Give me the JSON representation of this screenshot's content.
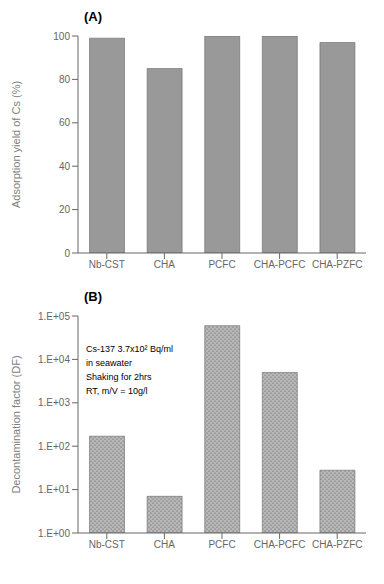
{
  "chart_data": [
    {
      "type": "bar",
      "title": "(A)",
      "categories": [
        "Nb-CST",
        "CHA",
        "PCFC",
        "CHA-PCFC",
        "CHA-PZFC"
      ],
      "values": [
        99.0,
        85.0,
        100.0,
        100.0,
        97.0
      ],
      "ylabel": "Adsorption yield of Cs (%)",
      "ylim": [
        0,
        100
      ],
      "yticks": [
        0,
        20,
        40,
        60,
        80,
        100
      ],
      "color": "#999999",
      "grid": false
    },
    {
      "type": "bar",
      "title": "(B)",
      "categories": [
        "Nb-CST",
        "CHA",
        "PCFC",
        "CHA-PCFC",
        "CHA-PZFC"
      ],
      "values": [
        170,
        7,
        60000,
        5000,
        28
      ],
      "ylabel": "Decontamination factor (DF)",
      "log": "y",
      "ylim": [
        1.0,
        100000
      ],
      "yticks": [
        {
          "value": 1,
          "label": "1.E+00"
        },
        {
          "value": 10,
          "label": "1.E+01"
        },
        {
          "value": 100,
          "label": "1.E+02"
        },
        {
          "value": 1000,
          "label": "1.E+03"
        },
        {
          "value": 10000,
          "label": "1.E+04"
        },
        {
          "value": 100000,
          "label": "1.E+05"
        }
      ],
      "color": "#b8b8b8",
      "grid": false,
      "annotation": "Cs-137 3.7x10² Bq/ml\nin seawater\nShaking for 2hrs\nRT, m/V = 10g/l"
    }
  ]
}
